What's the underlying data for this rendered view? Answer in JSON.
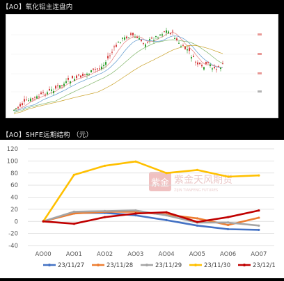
{
  "panel1": {
    "caption": "【AO】氧化铝主连盘内"
  },
  "panel2": {
    "caption": "【AO】SHFE远期结构 （元）",
    "watermark": {
      "logo_chars": "紫金",
      "name": "紫金天风期货",
      "tagline": "ZIJIN TIANFENG FUTURES"
    }
  },
  "chart_data": [
    {
      "type": "line",
      "title": "",
      "categories": [
        "AO00",
        "AO01",
        "AO02",
        "AO03",
        "AO04",
        "AO05",
        "AO06",
        "AO07"
      ],
      "series": [
        {
          "name": "23/11/27",
          "color": "#4472C4",
          "values": [
            0,
            14,
            14,
            10,
            2,
            -7,
            -13,
            -14
          ]
        },
        {
          "name": "23/11/28",
          "color": "#ED7D31",
          "values": [
            0,
            13,
            16,
            16,
            11,
            5,
            -6,
            6
          ]
        },
        {
          "name": "23/11/29",
          "color": "#A5A5A5",
          "values": [
            0,
            16,
            17,
            18,
            10,
            -2,
            -2,
            -7
          ]
        },
        {
          "name": "23/11/30",
          "color": "#FFC000",
          "values": [
            0,
            77,
            92,
            99,
            80,
            85,
            74,
            76
          ]
        },
        {
          "name": "23/12/1",
          "color": "#C00000",
          "values": [
            0,
            -4,
            7,
            13,
            15,
            -1,
            7,
            18
          ]
        }
      ],
      "y_ticks": [
        "120",
        "100",
        "80",
        "60",
        "40",
        "20",
        "0",
        "-20",
        "-40"
      ],
      "ylim": [
        -40,
        120
      ],
      "grid": "horizontal",
      "legend": "bottom"
    }
  ]
}
